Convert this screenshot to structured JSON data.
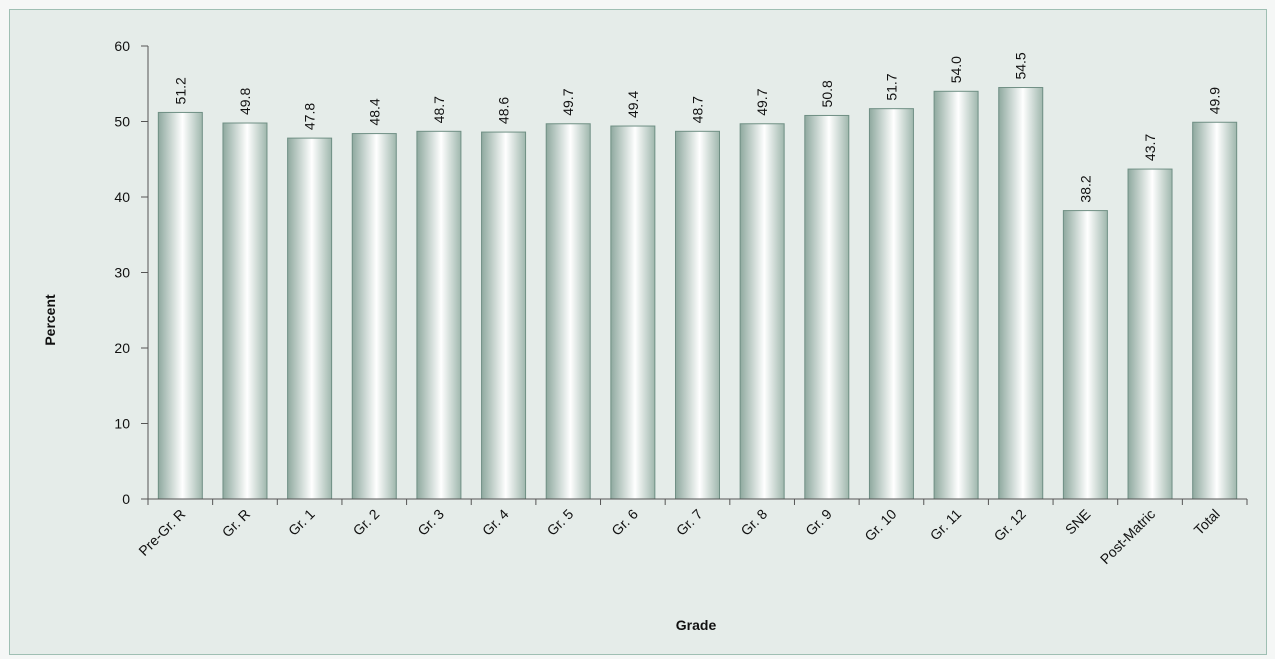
{
  "chart_data": {
    "type": "bar",
    "title": "",
    "xlabel": "Grade",
    "ylabel": "Percent",
    "ylim": [
      0,
      60
    ],
    "yticks": [
      0,
      10,
      20,
      30,
      40,
      50,
      60
    ],
    "grid": false,
    "categories": [
      "Pre-Gr. R",
      "Gr. R",
      "Gr. 1",
      "Gr. 2",
      "Gr. 3",
      "Gr. 4",
      "Gr. 5",
      "Gr. 6",
      "Gr. 7",
      "Gr. 8",
      "Gr. 9",
      "Gr. 10",
      "Gr. 11",
      "Gr. 12",
      "SNE",
      "Post-Matric",
      "Total"
    ],
    "values": [
      51.2,
      49.8,
      47.8,
      48.4,
      48.7,
      48.6,
      49.7,
      49.4,
      48.7,
      49.7,
      50.8,
      51.7,
      54.0,
      54.5,
      38.2,
      43.7,
      49.9
    ],
    "data_labels": [
      "51.2",
      "49.8",
      "47.8",
      "48.4",
      "48.7",
      "48.6",
      "49.7",
      "49.4",
      "48.7",
      "49.7",
      "50.8",
      "51.7",
      "54.0",
      "54.5",
      "38.2",
      "43.7",
      "49.9"
    ],
    "colors": {
      "bar_edge": "#6f8f84",
      "bar_dark": "#8fa99f",
      "bar_light": "#ffffff",
      "axis": "#555555",
      "background": "#e5ece9",
      "frame_border": "#9fbfb3"
    }
  }
}
